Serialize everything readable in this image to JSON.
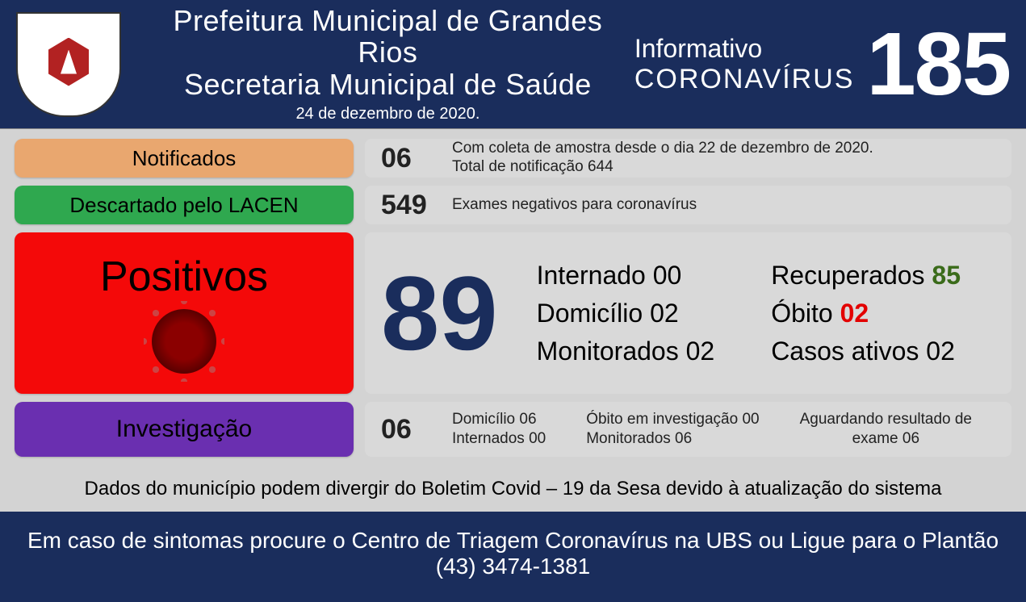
{
  "header": {
    "title_line1": "Prefeitura Municipal de Grandes Rios",
    "title_line2": "Secretaria Municipal de Saúde",
    "date": "24 de dezembro  de 2020.",
    "info_line1": "Informativo",
    "info_line2": "CORONAVÍRUS",
    "bulletin_number": "185"
  },
  "colors": {
    "header_bg": "#1a2d5c",
    "body_bg": "#d3d3d3",
    "cell_bg": "#d9d9d9",
    "notificados": "#e9a76f",
    "descartado": "#2fa84f",
    "positivos": "#f40909",
    "investigacao": "#6a2fb0",
    "big_number": "#1a2d5c",
    "recovered": "#3a6b1a",
    "deaths": "#e30000"
  },
  "rows": {
    "notificados": {
      "label": "Notificados",
      "value": "06",
      "text_line1": "Com coleta de amostra desde o dia 22 de dezembro de 2020.",
      "text_line2": "Total de notificação  644"
    },
    "descartado": {
      "label": "Descartado  pelo LACEN",
      "value": "549",
      "text": "Exames negativos  para coronavírus"
    },
    "positivos": {
      "label": "Positivos",
      "value": "89",
      "stats_col1": {
        "internado": "Internado 00",
        "domicilio": "Domicílio 02",
        "monitorados": "Monitorados 02"
      },
      "stats_col2": {
        "recuperados_label": "Recuperados ",
        "recuperados_value": "85",
        "obito_label": "Óbito ",
        "obito_value": "02",
        "ativos": "Casos ativos 02"
      }
    },
    "investigacao": {
      "label": "Investigação",
      "value": "06",
      "col1_line1": "Domicílio 06",
      "col1_line2": "Internados 00",
      "col2_line1": "Óbito  em investigação 00",
      "col2_line2": "Monitorados 06",
      "col3_line1": "Aguardando resultado de",
      "col3_line2": "exame 06"
    }
  },
  "disclaimer": "Dados  do município podem  divergir do Boletim Covid – 19 da Sesa devido à atualização  do sistema",
  "footer": "Em caso de sintomas  procure o Centro de Triagem Coronavírus na UBS ou Ligue para o Plantão (43) 3474-1381"
}
